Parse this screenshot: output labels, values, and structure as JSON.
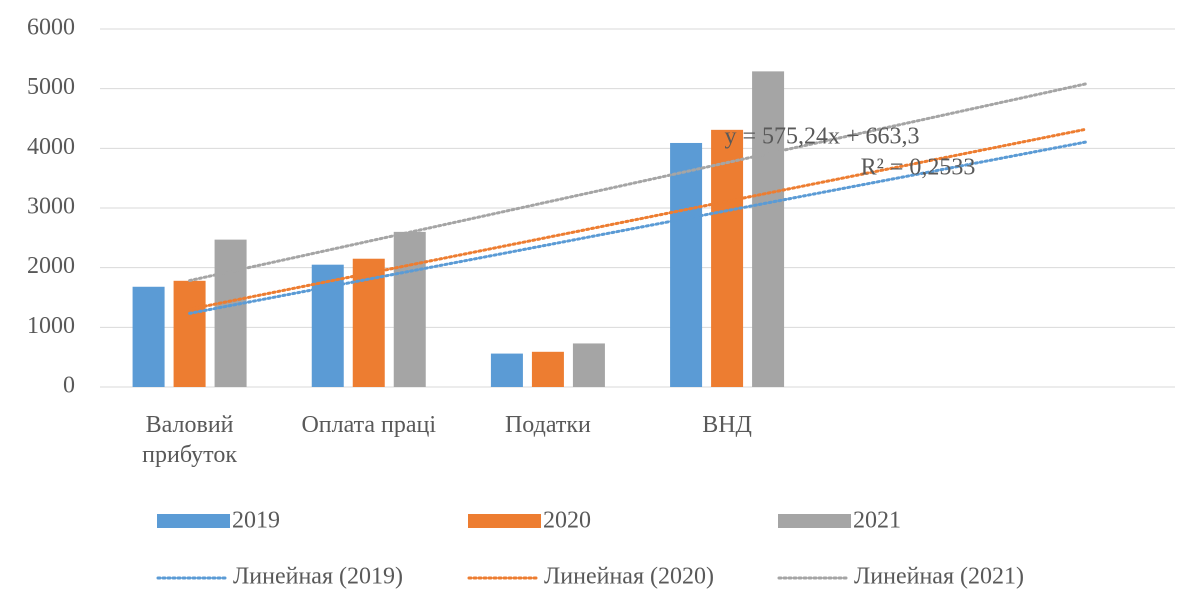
{
  "chart_data": {
    "type": "bar",
    "categories": [
      "Валовий прибуток",
      "Оплата праці",
      "Податки",
      "ВНД",
      null,
      null
    ],
    "series": [
      {
        "name": "2019",
        "color": "#5b9bd5",
        "values": [
          1680,
          2050,
          560,
          4090,
          null,
          null
        ]
      },
      {
        "name": "2020",
        "color": "#ed7d31",
        "values": [
          1780,
          2150,
          590,
          4310,
          null,
          null
        ]
      },
      {
        "name": "2021",
        "color": "#a5a5a5",
        "values": [
          2470,
          2600,
          730,
          5290,
          null,
          null
        ]
      }
    ],
    "trendline_labels": [
      "Линейная (2019)",
      "Линейная (2020)",
      "Линейная (2021)"
    ],
    "annotation": [
      "y = 575,24x + 663,3",
      "R² = 0,2533"
    ],
    "ylim": [
      0,
      6000
    ],
    "yticks": [
      0,
      1000,
      2000,
      3000,
      4000,
      5000,
      6000
    ],
    "grid": true
  }
}
